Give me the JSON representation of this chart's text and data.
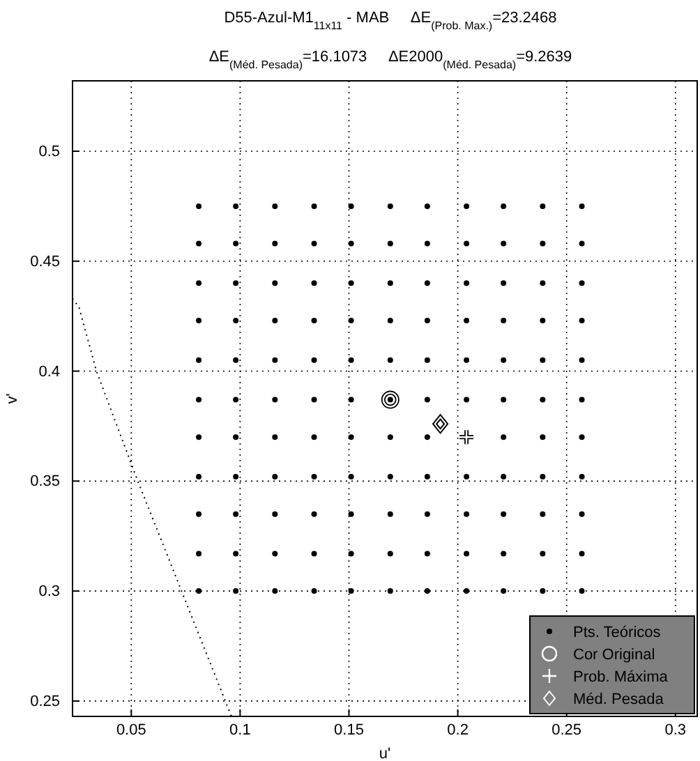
{
  "chart_data": {
    "type": "scatter",
    "title": "D55-Azul-M1$_{11x11}$ - MAB     ΔE$_{(Prob. Max.)}$=23.2468",
    "subtitle": "ΔE$_{(Méd. Pesada)}$=16.1073     ΔE2000$_{(Méd. Pesada)}$=9.2639",
    "xlabel": "u'",
    "ylabel": "v'",
    "xlim": [
      0.023,
      0.31
    ],
    "ylim": [
      0.243,
      0.532
    ],
    "xticks": [
      0.05,
      0.1,
      0.15,
      0.2,
      0.25,
      0.3
    ],
    "yticks": [
      0.25,
      0.3,
      0.35,
      0.4,
      0.45,
      0.5
    ],
    "grid": true,
    "legend": "bottom right",
    "series": [
      {
        "type": "line",
        "color": "#000000",
        "line_style": "dotted",
        "marker": "none",
        "x": [
          0.023,
          0.026,
          0.034,
          0.053,
          0.096
        ],
        "values": [
          0.433,
          0.429,
          0.4,
          0.35,
          0.243
        ]
      },
      {
        "name": "Pts. Teóricos",
        "color": "#000000",
        "marker": "circle",
        "x": [
          0.081,
          0.098,
          0.116,
          0.134,
          0.151,
          0.169,
          0.186,
          0.204,
          0.221,
          0.239,
          0.257,
          0.081,
          0.098,
          0.116,
          0.134,
          0.151,
          0.169,
          0.186,
          0.204,
          0.221,
          0.239,
          0.257,
          0.081,
          0.098,
          0.116,
          0.134,
          0.151,
          0.169,
          0.186,
          0.204,
          0.221,
          0.239,
          0.257,
          0.081,
          0.098,
          0.116,
          0.134,
          0.151,
          0.169,
          0.186,
          0.204,
          0.221,
          0.239,
          0.257,
          0.081,
          0.098,
          0.116,
          0.134,
          0.151,
          0.169,
          0.186,
          0.204,
          0.221,
          0.239,
          0.257,
          0.081,
          0.098,
          0.116,
          0.134,
          0.151,
          0.169,
          0.186,
          0.204,
          0.221,
          0.239,
          0.257,
          0.081,
          0.098,
          0.116,
          0.134,
          0.151,
          0.169,
          0.186,
          0.204,
          0.221,
          0.239,
          0.257,
          0.081,
          0.098,
          0.116,
          0.134,
          0.151,
          0.169,
          0.186,
          0.204,
          0.221,
          0.239,
          0.257,
          0.081,
          0.098,
          0.116,
          0.134,
          0.151,
          0.169,
          0.186,
          0.204,
          0.221,
          0.239,
          0.257,
          0.081,
          0.098,
          0.116,
          0.134,
          0.151,
          0.169,
          0.186,
          0.204,
          0.221,
          0.239,
          0.257,
          0.081,
          0.098,
          0.116,
          0.134,
          0.151,
          0.169,
          0.186,
          0.204,
          0.221,
          0.239,
          0.257
        ],
        "values": [
          0.3,
          0.3,
          0.3,
          0.3,
          0.3,
          0.3,
          0.3,
          0.3,
          0.3,
          0.3,
          0.3,
          0.317,
          0.317,
          0.317,
          0.317,
          0.317,
          0.317,
          0.317,
          0.317,
          0.317,
          0.317,
          0.317,
          0.335,
          0.335,
          0.335,
          0.335,
          0.335,
          0.335,
          0.335,
          0.335,
          0.335,
          0.335,
          0.335,
          0.352,
          0.352,
          0.352,
          0.352,
          0.352,
          0.352,
          0.352,
          0.352,
          0.352,
          0.352,
          0.352,
          0.37,
          0.37,
          0.37,
          0.37,
          0.37,
          0.37,
          0.37,
          0.37,
          0.37,
          0.37,
          0.37,
          0.387,
          0.387,
          0.387,
          0.387,
          0.387,
          0.387,
          0.387,
          0.387,
          0.387,
          0.387,
          0.387,
          0.405,
          0.405,
          0.405,
          0.405,
          0.405,
          0.405,
          0.405,
          0.405,
          0.405,
          0.405,
          0.405,
          0.423,
          0.423,
          0.423,
          0.423,
          0.423,
          0.423,
          0.423,
          0.423,
          0.423,
          0.423,
          0.423,
          0.44,
          0.44,
          0.44,
          0.44,
          0.44,
          0.44,
          0.44,
          0.44,
          0.44,
          0.44,
          0.44,
          0.458,
          0.458,
          0.458,
          0.458,
          0.458,
          0.458,
          0.458,
          0.458,
          0.458,
          0.458,
          0.458,
          0.475,
          0.475,
          0.475,
          0.475,
          0.475,
          0.475,
          0.475,
          0.475,
          0.475,
          0.475,
          0.475
        ]
      },
      {
        "name": "Cor Original",
        "color": "#ffffff",
        "marker": "circle",
        "x": [
          0.169
        ],
        "values": [
          0.387
        ]
      },
      {
        "name": "Prob. Máxima",
        "color": "#ffffff",
        "marker": "cross",
        "x": [
          0.204
        ],
        "values": [
          0.37
        ]
      },
      {
        "name": "Méd. Pesada",
        "color": "#ffffff",
        "marker": "diamond",
        "x": [
          0.192
        ],
        "values": [
          0.376
        ]
      }
    ]
  }
}
